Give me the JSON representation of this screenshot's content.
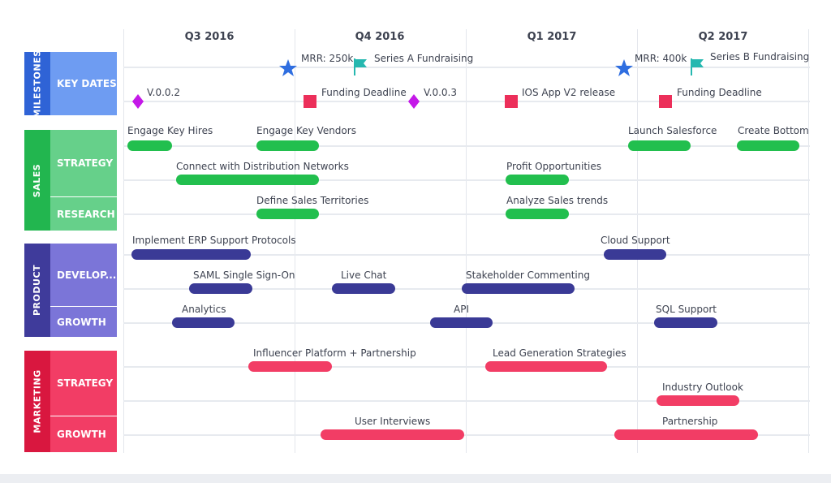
{
  "quarters": [
    "Q3 2016",
    "Q4 2016",
    "Q1 2017",
    "Q2 2017"
  ],
  "colors": {
    "milestones": "#2f63d6",
    "milestones_sub": "#6e9cf2",
    "sales": "#22b64f",
    "sales_sub": "#66d08a",
    "product": "#3f3b9b",
    "product_sub": "#7b75d8",
    "marketing": "#d9173f",
    "marketing_sub": "#f23d65",
    "bar_sales": "#22bf4e",
    "bar_product": "#3a3a96",
    "bar_marketing": "#f23d65",
    "star": "#2f6ee0",
    "flag": "#26b8b0",
    "diamond": "#c418e8",
    "square": "#ec2f5a"
  },
  "sections": [
    {
      "label": "MILESTONES",
      "rows": [
        {
          "label": "KEY DATES"
        }
      ]
    },
    {
      "label": "SALES",
      "rows": [
        {
          "label": "STRATEGY"
        },
        {
          "label": "RESEARCH"
        }
      ]
    },
    {
      "label": "PRODUCT",
      "rows": [
        {
          "label": "DEVELOP..."
        },
        {
          "label": "GROWTH"
        }
      ]
    },
    {
      "label": "MARKETING",
      "rows": [
        {
          "label": "STRATEGY"
        },
        {
          "label": "GROWTH"
        }
      ]
    }
  ],
  "milestones": [
    {
      "type": "star",
      "label": "MRR: 250k"
    },
    {
      "type": "flag",
      "label": "Series A Fundraising"
    },
    {
      "type": "star",
      "label": "MRR: 400k"
    },
    {
      "type": "flag",
      "label": "Series B Fundraising"
    },
    {
      "type": "diamond",
      "label": "V.0.0.2"
    },
    {
      "type": "square",
      "label": "Funding Deadline"
    },
    {
      "type": "diamond",
      "label": "V.0.0.3"
    },
    {
      "type": "square",
      "label": "IOS App V2 release"
    },
    {
      "type": "square",
      "label": "Funding Deadline"
    }
  ],
  "tasks": [
    {
      "section": "sales",
      "row": "STRATEGY",
      "label": "Engage Key Hires"
    },
    {
      "section": "sales",
      "row": "STRATEGY",
      "label": "Engage Key Vendors"
    },
    {
      "section": "sales",
      "row": "STRATEGY",
      "label": "Launch Salesforce"
    },
    {
      "section": "sales",
      "row": "STRATEGY",
      "label": "Create Bottom"
    },
    {
      "section": "sales",
      "row": "STRATEGY",
      "label": "Connect with Distribution Networks"
    },
    {
      "section": "sales",
      "row": "STRATEGY",
      "label": "Profit Opportunities"
    },
    {
      "section": "sales",
      "row": "RESEARCH",
      "label": "Define Sales Territories"
    },
    {
      "section": "sales",
      "row": "RESEARCH",
      "label": "Analyze Sales trends"
    },
    {
      "section": "product",
      "row": "DEVELOP...",
      "label": "Implement ERP Support Protocols"
    },
    {
      "section": "product",
      "row": "DEVELOP...",
      "label": "Cloud Support"
    },
    {
      "section": "product",
      "row": "DEVELOP...",
      "label": "SAML Single Sign-On"
    },
    {
      "section": "product",
      "row": "DEVELOP...",
      "label": "Live Chat"
    },
    {
      "section": "product",
      "row": "DEVELOP...",
      "label": "Stakeholder Commenting"
    },
    {
      "section": "product",
      "row": "GROWTH",
      "label": "Analytics"
    },
    {
      "section": "product",
      "row": "GROWTH",
      "label": "API"
    },
    {
      "section": "product",
      "row": "GROWTH",
      "label": "SQL Support"
    },
    {
      "section": "marketing",
      "row": "STRATEGY",
      "label": "Influencer Platform + Partnership"
    },
    {
      "section": "marketing",
      "row": "STRATEGY",
      "label": "Lead Generation Strategies"
    },
    {
      "section": "marketing",
      "row": "STRATEGY",
      "label": "Industry Outlook"
    },
    {
      "section": "marketing",
      "row": "GROWTH",
      "label": "User Interviews"
    },
    {
      "section": "marketing",
      "row": "GROWTH",
      "label": "Partnership"
    }
  ]
}
